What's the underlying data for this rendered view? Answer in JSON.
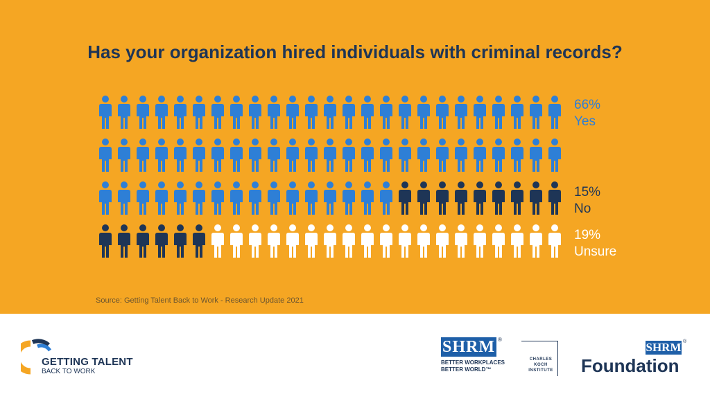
{
  "chart_data": {
    "type": "pictograph",
    "title": "Has your organization hired individuals with criminal records?",
    "total_icons": 100,
    "rows": 4,
    "icons_per_row": 25,
    "series": [
      {
        "name": "Yes",
        "percent_label": "66%",
        "value": 66,
        "color": "#2e7fd6",
        "label_color": "#2e7fd6"
      },
      {
        "name": "No",
        "percent_label": "15%",
        "value": 15,
        "color": "#1e3556",
        "label_color": "#1e3556"
      },
      {
        "name": "Unsure",
        "percent_label": "19%",
        "value": 19,
        "color": "#ffffff",
        "label_color": "#ffffff"
      }
    ],
    "background": "#f5a623"
  },
  "source": "Source: Getting Talent Back to Work - Research Update 2021",
  "logos": {
    "getting_talent_line1": "GETTING TALENT",
    "getting_talent_line2": "BACK TO WORK",
    "shrm": "SHRM",
    "shrm_reg": "®",
    "shrm_tagline_1": "BETTER WORKPLACES",
    "shrm_tagline_2": "BETTER WORLD™",
    "ck_line1": "CHARLES",
    "ck_line2": "KOCH",
    "ck_line3": "INSTITUTE",
    "shrm_small": "SHRM",
    "foundation": "Foundation"
  }
}
